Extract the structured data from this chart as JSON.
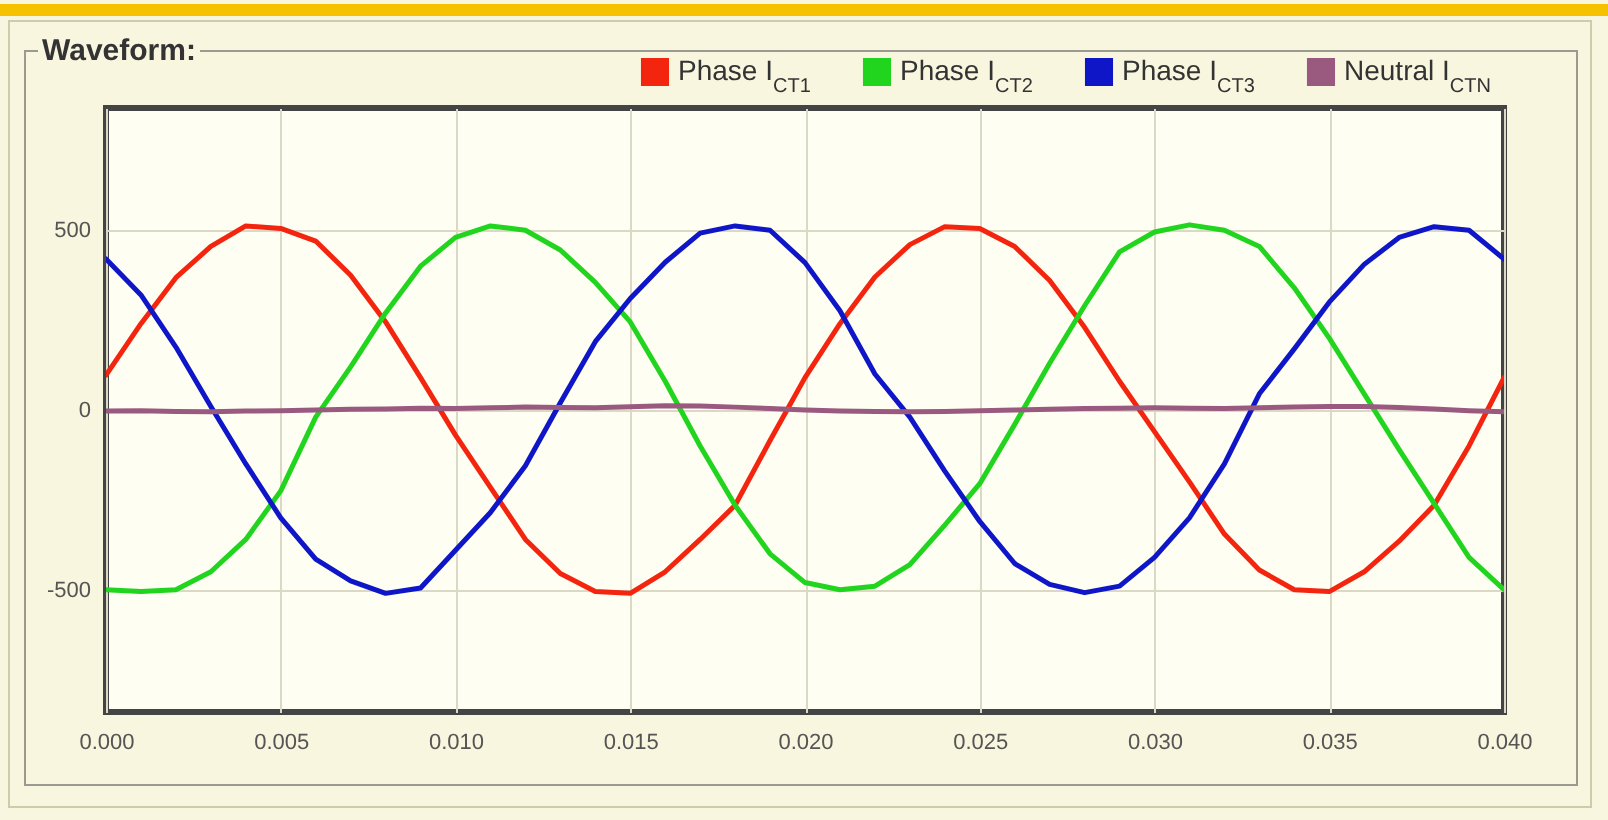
{
  "chart_data": {
    "type": "line",
    "title": "Waveform:",
    "x": [
      0,
      0.001,
      0.002,
      0.003,
      0.004,
      0.005,
      0.006,
      0.007,
      0.008,
      0.009,
      0.01,
      0.011,
      0.012,
      0.013,
      0.014,
      0.015,
      0.016,
      0.017,
      0.018,
      0.019,
      0.02,
      0.021,
      0.022,
      0.023,
      0.024,
      0.025,
      0.026,
      0.027,
      0.028,
      0.029,
      0.03,
      0.031,
      0.032,
      0.033,
      0.034,
      0.035,
      0.036,
      0.037,
      0.038,
      0.039,
      0.04
    ],
    "series": [
      {
        "name": "Phase I$_{CT1}$",
        "color": "#f3250f",
        "values": [
          97,
          240,
          368,
          455,
          512,
          505,
          470,
          375,
          245,
          90,
          -70,
          -215,
          -360,
          -455,
          -505,
          -510,
          -450,
          -360,
          -265,
          -85,
          90,
          240,
          370,
          460,
          510,
          505,
          455,
          360,
          230,
          80,
          -60,
          -200,
          -345,
          -445,
          -500,
          -505,
          -450,
          -365,
          -265,
          -100,
          90
        ]
      },
      {
        "name": "Phase I$_{CT2}$",
        "color": "#21d41e",
        "values": [
          -500,
          -505,
          -500,
          -450,
          -360,
          -225,
          -20,
          120,
          270,
          400,
          480,
          512,
          500,
          445,
          355,
          245,
          80,
          -100,
          -265,
          -400,
          -480,
          -500,
          -490,
          -430,
          -320,
          -205,
          -40,
          130,
          290,
          440,
          495,
          515,
          500,
          455,
          340,
          200,
          45,
          -110,
          -260,
          -410,
          -500
        ]
      },
      {
        "name": "Phase I$_{CT3}$",
        "color": "#0f16c8",
        "values": [
          420,
          320,
          175,
          10,
          -150,
          -300,
          -415,
          -475,
          -510,
          -495,
          -390,
          -285,
          -155,
          20,
          190,
          310,
          411,
          492,
          512,
          500,
          410,
          276,
          100,
          -20,
          -170,
          -310,
          -427,
          -485,
          -508,
          -490,
          -410,
          -300,
          -150,
          45,
          170,
          300,
          405,
          480,
          510,
          500,
          420
        ]
      },
      {
        "name": "Neutral I$_{CTN}$",
        "color": "#9a5a80",
        "values": [
          -3,
          -2,
          -4,
          -5,
          -3,
          -2,
          0,
          2,
          3,
          5,
          4,
          6,
          8,
          7,
          6,
          9,
          12,
          11,
          8,
          4,
          0,
          -3,
          -4,
          -5,
          -4,
          -2,
          0,
          2,
          4,
          5,
          6,
          5,
          4,
          6,
          8,
          10,
          10,
          7,
          3,
          -2,
          -5
        ]
      }
    ],
    "xlim": [
      0,
      0.04
    ],
    "xticks": [
      {
        "value": 0,
        "label": "0.000"
      },
      0.005,
      {
        "value": 0.01,
        "label": "0.010"
      },
      0.015,
      {
        "value": 0.02,
        "label": "0.020"
      },
      0.025,
      {
        "value": 0.03,
        "label": "0.030"
      },
      0.035,
      {
        "value": 0.04,
        "label": "0.040"
      }
    ],
    "ylim": [
      -840,
      840
    ],
    "yticks": [
      -500,
      0,
      500
    ],
    "grid": true,
    "legend": "top right"
  }
}
